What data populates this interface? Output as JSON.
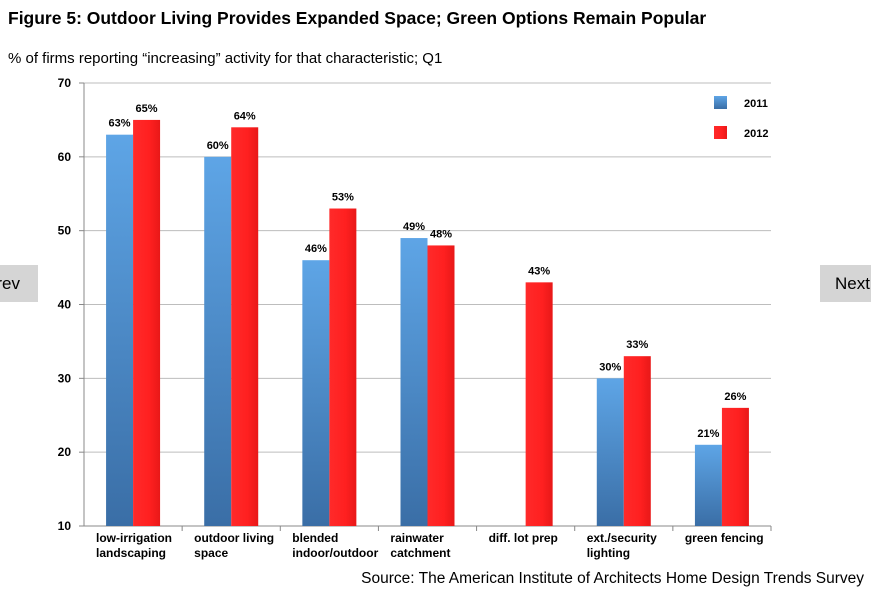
{
  "header": {
    "title": "Figure 5: Outdoor Living Provides Expanded Space; Green Options Remain Popular",
    "subtitle": "% of firms reporting “increasing” activity for that characteristic; Q1"
  },
  "nav": {
    "prev_label": "Prev",
    "next_label": "Next"
  },
  "source": "Source: The American Institute of Architects Home Design Trends Survey",
  "chart_data": {
    "type": "bar",
    "categories": [
      [
        "low-irrigation",
        "landscaping"
      ],
      [
        "outdoor living",
        "space"
      ],
      [
        "blended",
        "indoor/outdoor"
      ],
      [
        "rainwater",
        "catchment"
      ],
      [
        "diff. lot prep"
      ],
      [
        "ext./security",
        "lighting"
      ],
      [
        "green fencing"
      ]
    ],
    "series": [
      {
        "name": "2011",
        "color": "#4f94d4",
        "values": [
          63,
          60,
          46,
          49,
          null,
          30,
          21
        ],
        "labels": [
          "63%",
          "60%",
          "46%",
          "49%",
          "",
          "30%",
          "21%"
        ]
      },
      {
        "name": "2012",
        "color": "#ff2222",
        "values": [
          65,
          64,
          53,
          48,
          43,
          33,
          26
        ],
        "labels": [
          "65%",
          "64%",
          "53%",
          "48%",
          "43%",
          "33%",
          "26%"
        ]
      }
    ],
    "ylim": [
      10,
      70
    ],
    "yticks": [
      "10",
      "20",
      "30",
      "40",
      "50",
      "60",
      "70"
    ],
    "grid": true,
    "legend_position": "top-right"
  }
}
